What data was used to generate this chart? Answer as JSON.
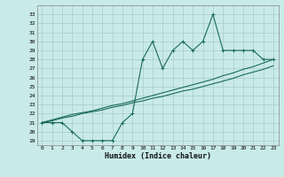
{
  "xlabel": "Humidex (Indice chaleur)",
  "bg_color": "#c8eae8",
  "line_color": "#1a6b5a",
  "grid_color": "#a8ccca",
  "x_values": [
    0,
    1,
    2,
    3,
    4,
    5,
    6,
    7,
    8,
    9,
    10,
    11,
    12,
    13,
    14,
    15,
    16,
    17,
    18,
    19,
    20,
    21,
    22,
    23
  ],
  "y_main": [
    21,
    21,
    21,
    20,
    19,
    19,
    19,
    19,
    21,
    22,
    28,
    30,
    27,
    29,
    30,
    29,
    30,
    33,
    29,
    29,
    29,
    29,
    28,
    28
  ],
  "y_upper": [
    21.0,
    21.3,
    21.6,
    21.9,
    22.1,
    22.3,
    22.6,
    22.9,
    23.1,
    23.4,
    23.7,
    24.0,
    24.3,
    24.6,
    24.9,
    25.2,
    25.5,
    25.8,
    26.2,
    26.5,
    26.9,
    27.2,
    27.6,
    28.0
  ],
  "y_lower": [
    21.0,
    21.2,
    21.5,
    21.7,
    22.0,
    22.2,
    22.4,
    22.7,
    22.9,
    23.2,
    23.4,
    23.7,
    23.9,
    24.2,
    24.5,
    24.7,
    25.0,
    25.3,
    25.6,
    25.9,
    26.3,
    26.6,
    26.9,
    27.3
  ],
  "ylim": [
    18.5,
    34.0
  ],
  "xlim": [
    -0.5,
    23.5
  ],
  "yticks": [
    19,
    20,
    21,
    22,
    23,
    24,
    25,
    26,
    27,
    28,
    29,
    30,
    31,
    32,
    33
  ],
  "xticks": [
    0,
    1,
    2,
    3,
    4,
    5,
    6,
    7,
    8,
    9,
    10,
    11,
    12,
    13,
    14,
    15,
    16,
    17,
    18,
    19,
    20,
    21,
    22,
    23
  ]
}
